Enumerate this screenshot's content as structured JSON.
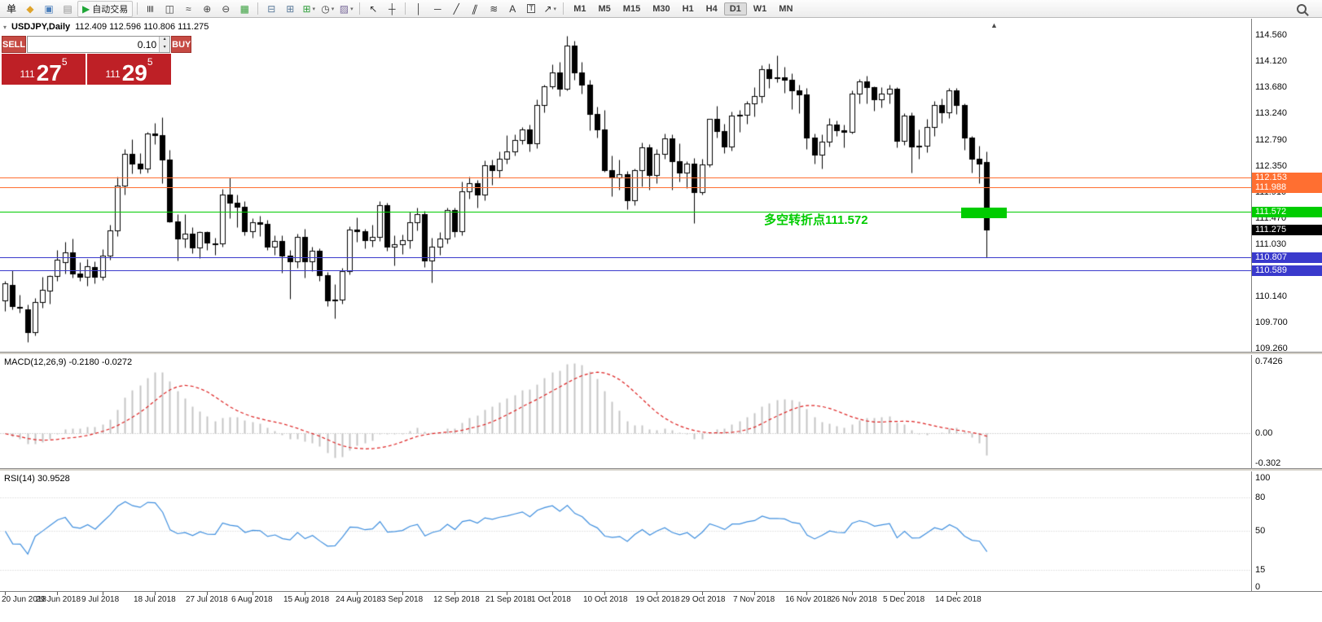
{
  "toolbar": {
    "items": [
      {
        "kind": "text",
        "name": "new-order-button",
        "glyph": "单",
        "color": "#111111"
      },
      {
        "kind": "icon",
        "name": "metatrader-icon",
        "glyph": "◆",
        "color": "#DFA42C"
      },
      {
        "kind": "icon",
        "name": "charts-window-icon",
        "glyph": "▣",
        "color": "#4A7EBB"
      },
      {
        "kind": "icon",
        "name": "profiles-icon",
        "glyph": "▤",
        "color": "#8E8E8E"
      },
      {
        "kind": "icon",
        "name": "autotrading-button",
        "glyph": "▶",
        "color": "#1FA637",
        "label": "自动交易"
      },
      {
        "kind": "sep",
        "name": "toolbar-separator"
      },
      {
        "kind": "icon",
        "name": "bar-chart-mode-icon",
        "glyph": "≣",
        "color": "#444444",
        "cls": "rot90"
      },
      {
        "kind": "icon",
        "name": "candlestick-mode-icon",
        "glyph": "◫",
        "color": "#444444"
      },
      {
        "kind": "icon",
        "name": "line-chart-mode-icon",
        "glyph": "≈",
        "color": "#444444"
      },
      {
        "kind": "icon",
        "name": "zoom-in-button",
        "glyph": "⊕",
        "color": "#444444"
      },
      {
        "kind": "icon",
        "name": "zoom-out-button",
        "glyph": "⊖",
        "color": "#444444"
      },
      {
        "kind": "icon",
        "name": "tile-windows-icon",
        "glyph": "▦",
        "color": "#3AA13F"
      },
      {
        "kind": "sep",
        "name": "toolbar-separator"
      },
      {
        "kind": "icon",
        "name": "arrange-windows-icon",
        "glyph": "⊟",
        "color": "#5A7A9A"
      },
      {
        "kind": "icon",
        "name": "cascade-windows-icon",
        "glyph": "⊞",
        "color": "#5A7A9A"
      },
      {
        "kind": "icon",
        "name": "new-chart-button",
        "glyph": "⊞",
        "color": "#2E9E3A",
        "caret": true
      },
      {
        "kind": "icon",
        "name": "periods-button",
        "glyph": "◷",
        "color": "#444444",
        "caret": true
      },
      {
        "kind": "icon",
        "name": "templates-button",
        "glyph": "▨",
        "color": "#7A6A9A",
        "caret": true
      },
      {
        "kind": "sep",
        "name": "toolbar-separator"
      },
      {
        "kind": "icon",
        "name": "cursor-tool",
        "glyph": "↖",
        "color": "#333333"
      },
      {
        "kind": "icon",
        "name": "crosshair-tool",
        "glyph": "┼",
        "color": "#333333"
      },
      {
        "kind": "sep",
        "name": "toolbar-separator"
      },
      {
        "kind": "icon",
        "name": "vertical-line-tool",
        "glyph": "│",
        "color": "#333333"
      },
      {
        "kind": "icon",
        "name": "horizontal-line-tool",
        "glyph": "─",
        "color": "#333333"
      },
      {
        "kind": "icon",
        "name": "trendline-tool",
        "glyph": "╱",
        "color": "#333333"
      },
      {
        "kind": "icon",
        "name": "channel-tool",
        "glyph": "∥",
        "color": "#333333",
        "cls": "skew"
      },
      {
        "kind": "icon",
        "name": "fibonacci-tool",
        "glyph": "≋",
        "color": "#333333"
      },
      {
        "kind": "icon",
        "name": "text-tool",
        "glyph": "A",
        "color": "#333333"
      },
      {
        "kind": "icon",
        "name": "text-label-tool",
        "glyph": "T",
        "color": "#333333",
        "cls": "boxed"
      },
      {
        "kind": "icon",
        "name": "arrows-tool",
        "glyph": "↗",
        "color": "#333333",
        "caret": true
      },
      {
        "kind": "sep",
        "name": "toolbar-separator"
      }
    ],
    "timeframes": [
      "M1",
      "M5",
      "M15",
      "M30",
      "H1",
      "H4",
      "D1",
      "W1",
      "MN"
    ],
    "active_timeframe": "D1"
  },
  "chart": {
    "one_click_toggle_icon": "▾",
    "symbol_period": "USDJPY,Daily",
    "ohlc": "112.409 112.596 110.806 111.275",
    "annotation": {
      "text": "多空转折点111.572",
      "color": "#00CC00"
    },
    "shift_marker": "▲"
  },
  "trade_panel": {
    "sell_label": "SELL",
    "buy_label": "BUY",
    "volume": "0.10",
    "spin_up": "▴",
    "spin_down": "▾",
    "sell_prefix": "111",
    "sell_big": "27",
    "sell_sup": "5",
    "buy_prefix": "111",
    "buy_big": "29",
    "buy_sup": "5"
  },
  "macd": {
    "label": "MACD(12,26,9) -0.2180 -0.0272",
    "scale_max_label": "0.7426",
    "scale_zero_label": "0.00",
    "scale_min_label": "-0.302"
  },
  "rsi": {
    "label": "RSI(14) 30.9528",
    "scale_labels": [
      "100",
      "80",
      "50",
      "15",
      "0"
    ],
    "scale_values": [
      100,
      80,
      50,
      15,
      0
    ],
    "level_lines": [
      80,
      50,
      15
    ]
  },
  "chart_data": {
    "type": "candlestick",
    "symbol": "USDJPY",
    "period": "Daily",
    "y_range": [
      109.26,
      114.56
    ],
    "y_axis_ticks": [
      "114.560",
      "114.120",
      "113.680",
      "113.240",
      "112.790",
      "112.350",
      "111.910",
      "111.470",
      "111.030",
      "110.590",
      "110.140",
      "109.700",
      "109.260"
    ],
    "x_axis_labels": [
      {
        "text": "20 Jun 2018",
        "index": 0
      },
      {
        "text": "29 Jun 2018",
        "index": 7
      },
      {
        "text": "9 Jul 2018",
        "index": 13
      },
      {
        "text": "18 Jul 2018",
        "index": 20
      },
      {
        "text": "27 Jul 2018",
        "index": 27
      },
      {
        "text": "6 Aug 2018",
        "index": 33
      },
      {
        "text": "15 Aug 2018",
        "index": 40
      },
      {
        "text": "24 Aug 2018",
        "index": 47
      },
      {
        "text": "3 Sep 2018",
        "index": 53
      },
      {
        "text": "12 Sep 2018",
        "index": 60
      },
      {
        "text": "21 Sep 2018",
        "index": 67
      },
      {
        "text": "1 Oct 2018",
        "index": 73
      },
      {
        "text": "10 Oct 2018",
        "index": 80
      },
      {
        "text": "19 Oct 2018",
        "index": 87
      },
      {
        "text": "29 Oct 2018",
        "index": 93
      },
      {
        "text": "7 Nov 2018",
        "index": 100
      },
      {
        "text": "16 Nov 2018",
        "index": 107
      },
      {
        "text": "26 Nov 2018",
        "index": 113
      },
      {
        "text": "5 Dec 2018",
        "index": 120
      },
      {
        "text": "14 Dec 2018",
        "index": 127
      }
    ],
    "levels": [
      {
        "value": 112.153,
        "label": "112.153",
        "color": "#FF6F31"
      },
      {
        "value": 111.988,
        "label": "111.988",
        "color": "#FF6F31"
      },
      {
        "value": 111.572,
        "label": "111.572",
        "color": "#00CC00"
      },
      {
        "value": 110.807,
        "label": "110.807",
        "color": "#3A3ACC"
      },
      {
        "value": 110.589,
        "label": "110.589",
        "color": "#3A3ACC"
      }
    ],
    "current_price": {
      "value": 111.275,
      "label": "111.275",
      "color": "#000000"
    },
    "highlight_rect": {
      "index_start": 127.6,
      "index_end": 133.7,
      "price_top": 111.648,
      "price_bottom": 111.468,
      "color": "#00CC00"
    },
    "indicators": {
      "macd": {
        "fast": 12,
        "slow": 26,
        "signal": 9,
        "last_main": -0.218,
        "last_signal": -0.0272,
        "scale": [
          -0.302,
          0.7426
        ],
        "main_color": "#C4C4C4",
        "signal_color": "#DD2222"
      },
      "rsi": {
        "period": 14,
        "last": 30.9528,
        "color": "#3E8EDE"
      }
    },
    "candles": [
      [
        110.07,
        110.41,
        109.9,
        110.36
      ],
      [
        110.34,
        110.59,
        109.92,
        109.98
      ],
      [
        109.96,
        110.17,
        109.87,
        109.97
      ],
      [
        109.92,
        110.01,
        109.37,
        109.54
      ],
      [
        109.54,
        110.12,
        109.48,
        110.05
      ],
      [
        110.05,
        110.48,
        109.95,
        110.25
      ],
      [
        110.24,
        110.5,
        110.02,
        110.49
      ],
      [
        110.49,
        110.93,
        110.4,
        110.76
      ],
      [
        110.72,
        111.06,
        110.53,
        110.89
      ],
      [
        110.89,
        111.12,
        110.46,
        110.53
      ],
      [
        110.53,
        110.72,
        110.4,
        110.48
      ],
      [
        110.48,
        110.78,
        110.33,
        110.65
      ],
      [
        110.64,
        110.74,
        110.37,
        110.47
      ],
      [
        110.47,
        110.94,
        110.42,
        110.83
      ],
      [
        110.83,
        111.35,
        110.76,
        111.26
      ],
      [
        111.26,
        112.17,
        111.16,
        112.01
      ],
      [
        112.01,
        112.63,
        111.87,
        112.55
      ],
      [
        112.55,
        112.8,
        112.22,
        112.38
      ],
      [
        112.38,
        112.57,
        112.22,
        112.31
      ],
      [
        112.31,
        112.93,
        112.23,
        112.89
      ],
      [
        112.89,
        113.08,
        112.71,
        112.87
      ],
      [
        112.87,
        113.17,
        112.06,
        112.46
      ],
      [
        112.46,
        112.62,
        111.39,
        111.41
      ],
      [
        111.41,
        111.54,
        110.75,
        111.12
      ],
      [
        111.12,
        111.53,
        110.97,
        111.2
      ],
      [
        111.2,
        111.32,
        110.87,
        110.97
      ],
      [
        110.97,
        111.25,
        110.79,
        111.23
      ],
      [
        111.23,
        111.25,
        110.93,
        111.05
      ],
      [
        111.04,
        111.13,
        110.85,
        111.04
      ],
      [
        111.04,
        111.96,
        110.98,
        111.86
      ],
      [
        111.86,
        112.15,
        111.46,
        111.72
      ],
      [
        111.72,
        111.87,
        111.31,
        111.66
      ],
      [
        111.66,
        111.76,
        111.18,
        111.25
      ],
      [
        111.25,
        111.47,
        111.13,
        111.39
      ],
      [
        111.39,
        111.5,
        111.16,
        111.37
      ],
      [
        111.37,
        111.44,
        110.93,
        110.99
      ],
      [
        110.99,
        111.18,
        110.85,
        111.08
      ],
      [
        111.08,
        111.17,
        110.55,
        110.83
      ],
      [
        110.83,
        110.93,
        110.11,
        110.74
      ],
      [
        110.74,
        111.21,
        110.63,
        111.15
      ],
      [
        111.15,
        111.28,
        110.46,
        110.73
      ],
      [
        110.73,
        110.99,
        110.57,
        110.91
      ],
      [
        110.91,
        110.95,
        110.41,
        110.5
      ],
      [
        110.5,
        110.56,
        109.98,
        110.07
      ],
      [
        110.07,
        110.35,
        109.77,
        110.09
      ],
      [
        110.09,
        110.62,
        110.02,
        110.57
      ],
      [
        110.57,
        111.33,
        110.51,
        111.27
      ],
      [
        111.27,
        111.48,
        111.07,
        111.24
      ],
      [
        111.24,
        111.29,
        110.95,
        111.09
      ],
      [
        111.09,
        111.35,
        110.98,
        111.15
      ],
      [
        111.15,
        111.75,
        111.08,
        111.68
      ],
      [
        111.68,
        111.72,
        110.92,
        110.99
      ],
      [
        110.99,
        111.17,
        110.67,
        111.03
      ],
      [
        111.03,
        111.19,
        110.86,
        111.1
      ],
      [
        111.1,
        111.57,
        110.96,
        111.39
      ],
      [
        111.39,
        111.64,
        111.26,
        111.53
      ],
      [
        111.53,
        111.59,
        110.64,
        110.75
      ],
      [
        110.75,
        111.13,
        110.38,
        110.99
      ],
      [
        110.99,
        111.23,
        110.84,
        111.12
      ],
      [
        111.12,
        111.65,
        111.04,
        111.6
      ],
      [
        111.6,
        111.64,
        111.15,
        111.25
      ],
      [
        111.25,
        112.08,
        111.18,
        111.92
      ],
      [
        111.92,
        112.17,
        111.79,
        112.06
      ],
      [
        112.06,
        112.11,
        111.65,
        111.87
      ],
      [
        111.87,
        112.44,
        111.77,
        112.36
      ],
      [
        112.36,
        112.45,
        112.03,
        112.27
      ],
      [
        112.27,
        112.59,
        112.15,
        112.47
      ],
      [
        112.47,
        112.87,
        112.39,
        112.59
      ],
      [
        112.59,
        112.88,
        112.52,
        112.78
      ],
      [
        112.78,
        113.0,
        112.72,
        112.97
      ],
      [
        112.97,
        113.05,
        112.59,
        112.73
      ],
      [
        112.73,
        113.48,
        112.65,
        113.38
      ],
      [
        113.38,
        113.72,
        113.25,
        113.7
      ],
      [
        113.7,
        114.06,
        113.65,
        113.93
      ],
      [
        113.93,
        114.1,
        113.53,
        113.65
      ],
      [
        113.65,
        114.54,
        113.62,
        114.38
      ],
      [
        114.38,
        114.47,
        113.8,
        113.93
      ],
      [
        113.93,
        114.1,
        113.57,
        113.72
      ],
      [
        113.72,
        113.8,
        112.95,
        113.22
      ],
      [
        113.22,
        113.35,
        112.82,
        112.96
      ],
      [
        112.96,
        113.29,
        112.25,
        112.27
      ],
      [
        112.27,
        112.53,
        111.83,
        112.15
      ],
      [
        112.15,
        112.45,
        111.95,
        112.21
      ],
      [
        112.21,
        112.26,
        111.62,
        111.77
      ],
      [
        111.77,
        112.31,
        111.68,
        112.27
      ],
      [
        112.27,
        112.74,
        112.0,
        112.66
      ],
      [
        112.66,
        112.72,
        111.95,
        112.2
      ],
      [
        112.2,
        112.64,
        112.05,
        112.55
      ],
      [
        112.55,
        112.89,
        112.47,
        112.81
      ],
      [
        112.81,
        112.88,
        111.95,
        112.43
      ],
      [
        112.43,
        112.73,
        112.08,
        112.23
      ],
      [
        112.23,
        112.43,
        111.98,
        112.39
      ],
      [
        112.39,
        112.48,
        111.38,
        111.9
      ],
      [
        111.9,
        112.47,
        111.86,
        112.37
      ],
      [
        112.37,
        113.15,
        112.33,
        113.14
      ],
      [
        113.14,
        113.37,
        112.82,
        112.94
      ],
      [
        112.94,
        113.06,
        112.56,
        112.68
      ],
      [
        112.68,
        113.27,
        112.6,
        113.2
      ],
      [
        113.2,
        113.3,
        112.92,
        113.21
      ],
      [
        113.21,
        113.45,
        113.06,
        113.41
      ],
      [
        113.41,
        113.68,
        113.19,
        113.53
      ],
      [
        113.53,
        114.05,
        113.42,
        113.98
      ],
      [
        113.98,
        114.08,
        113.66,
        113.83
      ],
      [
        113.83,
        114.21,
        113.76,
        113.84
      ],
      [
        113.84,
        114.02,
        113.59,
        113.81
      ],
      [
        113.81,
        113.92,
        113.31,
        113.62
      ],
      [
        113.62,
        113.72,
        113.24,
        113.56
      ],
      [
        113.56,
        113.66,
        112.64,
        112.83
      ],
      [
        112.83,
        112.9,
        112.38,
        112.54
      ],
      [
        112.54,
        112.88,
        112.3,
        112.76
      ],
      [
        112.76,
        113.16,
        112.67,
        113.05
      ],
      [
        113.05,
        113.12,
        112.85,
        112.95
      ],
      [
        112.95,
        113.05,
        112.66,
        112.93
      ],
      [
        112.93,
        113.62,
        112.89,
        113.57
      ],
      [
        113.57,
        113.82,
        113.41,
        113.78
      ],
      [
        113.78,
        113.87,
        113.4,
        113.68
      ],
      [
        113.68,
        113.7,
        113.28,
        113.47
      ],
      [
        113.47,
        113.68,
        113.34,
        113.57
      ],
      [
        113.57,
        113.72,
        113.4,
        113.65
      ],
      [
        113.65,
        113.68,
        112.66,
        112.77
      ],
      [
        112.77,
        113.24,
        112.7,
        113.2
      ],
      [
        113.2,
        113.25,
        112.23,
        112.67
      ],
      [
        112.67,
        112.96,
        112.47,
        112.69
      ],
      [
        112.69,
        113.14,
        112.58,
        113.01
      ],
      [
        113.01,
        113.45,
        112.86,
        113.38
      ],
      [
        113.38,
        113.49,
        113.08,
        113.25
      ],
      [
        113.25,
        113.67,
        113.16,
        113.62
      ],
      [
        113.62,
        113.66,
        113.22,
        113.38
      ],
      [
        113.38,
        113.41,
        112.62,
        112.82
      ],
      [
        112.82,
        112.85,
        112.24,
        112.47
      ],
      [
        112.47,
        112.69,
        112.06,
        112.39
      ],
      [
        112.409,
        112.596,
        110.806,
        111.275
      ]
    ]
  }
}
